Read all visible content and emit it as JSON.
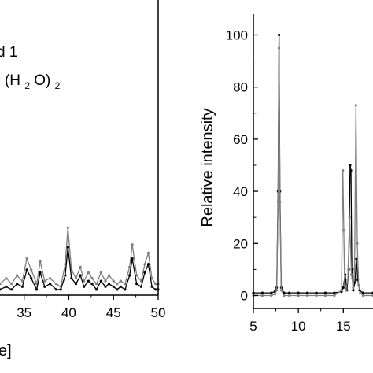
{
  "chart_data": [
    {
      "type": "line",
      "panel": "left (cropped)",
      "legend_partial": {
        "line1": "d 1",
        "line2_parts": [
          "",
          "2",
          "(H",
          "2",
          "O)",
          "2"
        ]
      },
      "xlabel_partial": "e]",
      "x_ticks": [
        35,
        40,
        45,
        50
      ],
      "xlim": [
        32.3,
        50
      ],
      "ylim": [
        0,
        100
      ],
      "series": [
        {
          "color": "#7f7f7f",
          "x": [
            32.3,
            33.0,
            33.6,
            34.2,
            34.8,
            35.3,
            35.8,
            36.4,
            36.8,
            37.3,
            37.9,
            38.6,
            39.1,
            39.6,
            39.9,
            40.3,
            40.8,
            41.3,
            41.7,
            42.2,
            42.6,
            43.1,
            43.6,
            44.1,
            44.5,
            45.0,
            45.4,
            45.8,
            46.3,
            46.8,
            47.1,
            47.6,
            48.1,
            48.5,
            48.9,
            49.3,
            49.7,
            50.0
          ],
          "y": [
            4,
            6,
            4,
            7,
            5,
            13,
            9,
            4,
            12,
            5,
            6,
            4,
            3,
            11,
            24,
            9,
            6,
            10,
            5,
            8,
            6,
            4,
            8,
            5,
            7,
            5,
            4,
            5,
            4,
            10,
            18,
            7,
            5,
            11,
            15,
            6,
            4,
            4
          ]
        },
        {
          "color": "#000000",
          "x": [
            32.3,
            33.0,
            33.6,
            34.2,
            34.8,
            35.3,
            35.8,
            36.4,
            36.8,
            37.3,
            37.9,
            38.6,
            39.1,
            39.6,
            39.9,
            40.3,
            40.8,
            41.3,
            41.7,
            42.2,
            42.6,
            43.1,
            43.6,
            44.1,
            44.5,
            45.0,
            45.4,
            45.8,
            46.3,
            46.8,
            47.1,
            47.6,
            48.1,
            48.5,
            48.9,
            49.3,
            49.7,
            50.0
          ],
          "y": [
            2,
            3,
            2,
            4,
            3,
            9,
            6,
            2,
            8,
            3,
            4,
            2,
            2,
            7,
            17,
            6,
            4,
            7,
            3,
            5,
            4,
            2,
            5,
            3,
            4,
            3,
            2,
            3,
            2,
            7,
            13,
            4,
            3,
            8,
            11,
            3,
            2,
            2
          ]
        }
      ]
    },
    {
      "type": "line",
      "panel": "right",
      "ylabel": "Relative intensity",
      "x_ticks": [
        5,
        10,
        15
      ],
      "y_ticks": [
        0,
        20,
        40,
        60,
        80,
        100
      ],
      "xlim": [
        5,
        18.3
      ],
      "ylim": [
        -5,
        108
      ],
      "series": [
        {
          "color": "#000000",
          "x": [
            5.0,
            6.0,
            7.0,
            7.4,
            7.6,
            7.75,
            7.85,
            7.95,
            8.1,
            8.4,
            9.0,
            10.0,
            11.0,
            12.0,
            13.0,
            14.0,
            14.8,
            15.0,
            15.2,
            15.4,
            15.6,
            15.75,
            15.85,
            15.95,
            16.1,
            16.3,
            16.45,
            16.6,
            16.8,
            17.2,
            18.3
          ],
          "y": [
            1,
            1,
            1,
            1.5,
            3,
            40,
            100,
            40,
            3,
            1,
            1,
            1,
            1,
            1,
            1,
            1,
            1.5,
            3,
            8,
            2,
            10,
            50,
            48,
            10,
            2,
            5,
            14,
            6,
            2,
            1,
            1
          ]
        },
        {
          "color": "#7f7f7f",
          "x": [
            5.0,
            6.0,
            7.0,
            7.4,
            7.6,
            7.75,
            7.85,
            7.95,
            8.1,
            8.4,
            9.0,
            10.0,
            11.0,
            12.0,
            13.0,
            14.0,
            14.8,
            14.95,
            15.05,
            15.15,
            15.3,
            15.5,
            15.7,
            15.9,
            16.1,
            16.25,
            16.4,
            16.55,
            16.7,
            16.9,
            17.2,
            18.3
          ],
          "y": [
            0,
            0,
            0,
            0.5,
            2,
            36,
            95,
            36,
            2,
            0,
            0,
            0,
            0,
            0,
            0,
            0,
            2,
            48,
            25,
            4,
            2,
            6,
            30,
            8,
            3,
            10,
            73,
            20,
            4,
            1,
            0,
            0
          ]
        }
      ]
    }
  ]
}
